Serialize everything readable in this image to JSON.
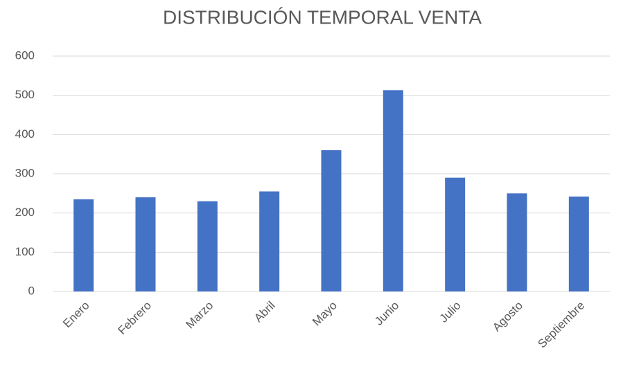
{
  "chart_data": {
    "type": "bar",
    "title": "DISTRIBUCIÓN TEMPORAL VENTA",
    "categories": [
      "Enero",
      "Febrero",
      "Marzo",
      "Abril",
      "Mayo",
      "Junio",
      "Julio",
      "Agosto",
      "Septiembre"
    ],
    "values": [
      235,
      240,
      230,
      255,
      360,
      513,
      290,
      250,
      242
    ],
    "color": "#4472c4",
    "ylim": [
      0,
      600
    ],
    "yticks": [
      0,
      100,
      200,
      300,
      400,
      500,
      600
    ],
    "grid": true
  }
}
